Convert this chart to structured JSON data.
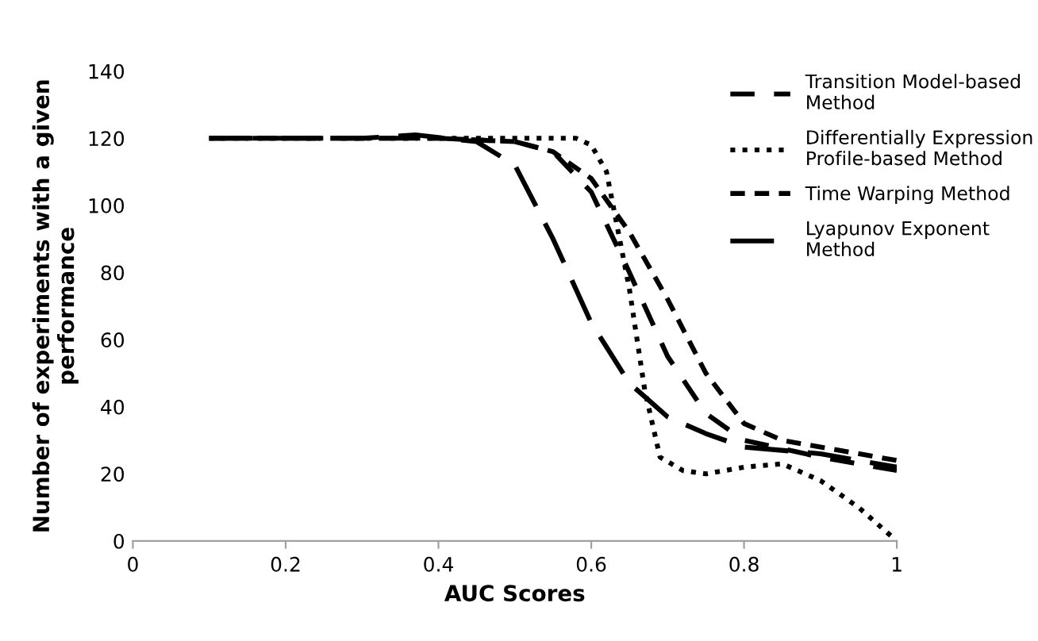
{
  "chart_data": {
    "type": "line",
    "xlabel": "AUC Scores",
    "ylabel": "Number of experiments with a given\nperformance",
    "xlim": [
      0,
      1
    ],
    "xticks": [
      0,
      0.2,
      0.4,
      0.6,
      0.8,
      1
    ],
    "ylim": [
      0,
      140
    ],
    "yticks": [
      0,
      20,
      40,
      60,
      80,
      100,
      120,
      140
    ],
    "grid": false,
    "legend": "top right",
    "marker": "none",
    "series": [
      {
        "name": "Transition Model-based\nMethod",
        "color": "#000000",
        "line_style": "dashed",
        "x": [
          0.1,
          0.3,
          0.4,
          0.5,
          0.55,
          0.6,
          0.65,
          0.7,
          0.75,
          0.8,
          0.9,
          1
        ],
        "values": [
          120,
          120,
          120,
          119,
          116,
          104,
          80,
          55,
          38,
          30,
          25,
          21
        ]
      },
      {
        "name": "Differentially Expression\nProfile-based Method",
        "color": "#000000",
        "line_style": "dotted",
        "x": [
          0.1,
          0.3,
          0.4,
          0.5,
          0.58,
          0.6,
          0.62,
          0.65,
          0.67,
          0.69,
          0.72,
          0.75,
          0.8,
          0.85,
          0.9,
          0.95,
          1
        ],
        "values": [
          120,
          120,
          120,
          120,
          120,
          118,
          110,
          75,
          45,
          25,
          21,
          20,
          22,
          23,
          18,
          10,
          0
        ]
      },
      {
        "name": "Time Warping Method",
        "color": "#000000",
        "line_style": "dashed",
        "x": [
          0.1,
          0.3,
          0.4,
          0.5,
          0.55,
          0.6,
          0.65,
          0.7,
          0.75,
          0.8,
          0.85,
          0.9,
          1
        ],
        "values": [
          120,
          120,
          120,
          119,
          116,
          108,
          92,
          72,
          50,
          35,
          30,
          28,
          24
        ]
      },
      {
        "name": "Lyapunov Exponent\nMethod",
        "color": "#000000",
        "line_style": "dashed",
        "x": [
          0.1,
          0.3,
          0.37,
          0.45,
          0.5,
          0.55,
          0.6,
          0.65,
          0.7,
          0.75,
          0.8,
          0.9,
          1
        ],
        "values": [
          120,
          120,
          121,
          119,
          112,
          90,
          65,
          47,
          37,
          32,
          28,
          26,
          22
        ]
      }
    ]
  }
}
